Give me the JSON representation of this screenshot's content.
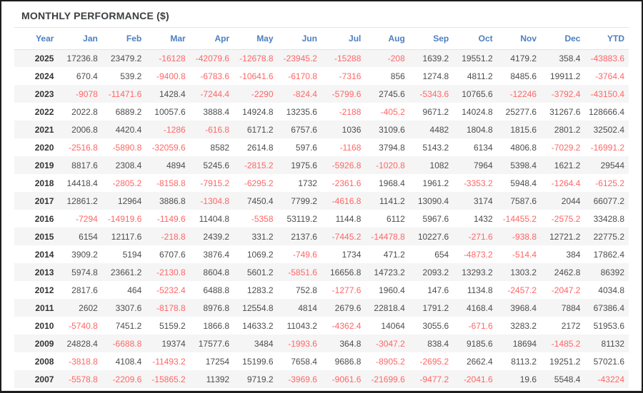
{
  "panel": {
    "title": "MONTHLY PERFORMANCE ($)"
  },
  "colors": {
    "header_text": "#4d7fbf",
    "negative_value": "#ff6666",
    "positive_value": "#4d4d4d",
    "year_text": "#333333",
    "row_stripe": "#f5f5f5",
    "title_text": "#3b3f42",
    "divider": "#e4e4e4",
    "outer_border": "#1d1d1d"
  },
  "chart_data": {
    "type": "table",
    "title": "MONTHLY PERFORMANCE ($)",
    "columns": [
      "Year",
      "Jan",
      "Feb",
      "Mar",
      "Apr",
      "May",
      "Jun",
      "Jul",
      "Aug",
      "Sep",
      "Oct",
      "Nov",
      "Dec",
      "YTD"
    ],
    "rows": [
      {
        "year": "2025",
        "values": [
          17236.8,
          23479.2,
          -16128,
          -42079.6,
          -12678.8,
          -23945.2,
          -15288,
          -208,
          1639.2,
          19551.2,
          4179.2,
          358.4,
          -43883.6
        ]
      },
      {
        "year": "2024",
        "values": [
          670.4,
          539.2,
          -9400.8,
          -6783.6,
          -10641.6,
          -6170.8,
          -7316,
          856,
          1274.8,
          4811.2,
          8485.6,
          19911.2,
          -3764.4
        ]
      },
      {
        "year": "2023",
        "values": [
          -9078,
          -11471.6,
          1428.4,
          -7244.4,
          -2290,
          -824.4,
          -5799.6,
          2745.6,
          -5343.6,
          10765.6,
          -12246,
          -3792.4,
          -43150.4
        ]
      },
      {
        "year": "2022",
        "values": [
          2022.8,
          6889.2,
          10057.6,
          3888.4,
          14924.8,
          13235.6,
          -2188,
          -405.2,
          9671.2,
          14024.8,
          25277.6,
          31267.6,
          128666.4
        ]
      },
      {
        "year": "2021",
        "values": [
          2006.8,
          4420.4,
          -1286,
          -616.8,
          6171.2,
          6757.6,
          1036,
          3109.6,
          4482,
          1804.8,
          1815.6,
          2801.2,
          32502.4
        ]
      },
      {
        "year": "2020",
        "values": [
          -2516.8,
          -5890.8,
          -32059.6,
          8582,
          2614.8,
          597.6,
          -1168,
          3794.8,
          5143.2,
          6134,
          4806.8,
          -7029.2,
          -16991.2
        ]
      },
      {
        "year": "2019",
        "values": [
          8817.6,
          2308.4,
          4894,
          5245.6,
          -2815.2,
          1975.6,
          -5926.8,
          -1020.8,
          1082,
          7964,
          5398.4,
          1621.2,
          29544
        ]
      },
      {
        "year": "2018",
        "values": [
          14418.4,
          -2805.2,
          -8158.8,
          -7915.2,
          -6295.2,
          1732,
          -2361.6,
          1968.4,
          1961.2,
          -3353.2,
          5948.4,
          -1264.4,
          -6125.2
        ]
      },
      {
        "year": "2017",
        "values": [
          12861.2,
          12964,
          3886.8,
          -1304.8,
          7450.4,
          7799.2,
          -4616.8,
          1141.2,
          13090.4,
          3174,
          7587.6,
          2044,
          66077.2
        ]
      },
      {
        "year": "2016",
        "values": [
          -7294,
          -14919.6,
          -1149.6,
          11404.8,
          -5358,
          53119.2,
          1144.8,
          6112,
          5967.6,
          1432,
          -14455.2,
          -2575.2,
          33428.8
        ]
      },
      {
        "year": "2015",
        "values": [
          6154,
          12117.6,
          -218.8,
          2439.2,
          331.2,
          2137.6,
          -7445.2,
          -14478.8,
          10227.6,
          -271.6,
          -938.8,
          12721.2,
          22775.2
        ]
      },
      {
        "year": "2014",
        "values": [
          3909.2,
          5194,
          6707.6,
          3876.4,
          1069.2,
          -749.6,
          1734,
          471.2,
          654,
          -4873.2,
          -514.4,
          384,
          17862.4
        ]
      },
      {
        "year": "2013",
        "values": [
          5974.8,
          23661.2,
          -2130.8,
          8604.8,
          5601.2,
          -5851.6,
          16656.8,
          14723.2,
          2093.2,
          13293.2,
          1303.2,
          2462.8,
          86392
        ]
      },
      {
        "year": "2012",
        "values": [
          2817.6,
          464,
          -5232.4,
          6488.8,
          1283.2,
          752.8,
          -1277.6,
          1960.4,
          147.6,
          1134.8,
          -2457.2,
          -2047.2,
          4034.8
        ]
      },
      {
        "year": "2011",
        "values": [
          2602,
          3307.6,
          -8178.8,
          8976.8,
          12554.8,
          4814,
          2679.6,
          22818.4,
          1791.2,
          4168.4,
          3968.4,
          7884,
          67386.4
        ]
      },
      {
        "year": "2010",
        "values": [
          -5740.8,
          7451.2,
          5159.2,
          1866.8,
          14633.2,
          11043.2,
          -4362.4,
          14064,
          3055.6,
          -671.6,
          3283.2,
          2172,
          51953.6
        ]
      },
      {
        "year": "2009",
        "values": [
          24828.4,
          -6688.8,
          19374,
          17577.6,
          3484,
          -1993.6,
          364.8,
          -3047.2,
          838.4,
          9185.6,
          18694,
          -1485.2,
          81132
        ]
      },
      {
        "year": "2008",
        "values": [
          -3818.8,
          4108.4,
          -11493.2,
          17254,
          15199.6,
          7658.4,
          9686.8,
          -8905.2,
          -2695.2,
          2662.4,
          8113.2,
          19251.2,
          57021.6
        ]
      },
      {
        "year": "2007",
        "values": [
          -5578.8,
          -2209.6,
          -15865.2,
          11392,
          9719.2,
          -3969.6,
          -9061.6,
          -21699.6,
          -9477.2,
          -2041.6,
          19.6,
          5548.4,
          -43224
        ]
      }
    ]
  }
}
